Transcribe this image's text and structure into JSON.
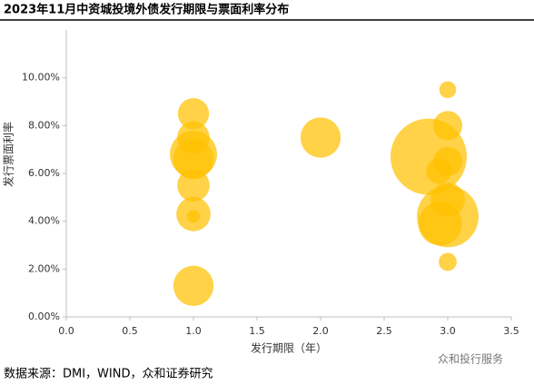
{
  "chart_data": {
    "type": "bubble",
    "title": "2023年11月中资城投境外债发行期限与票面利率分布",
    "x_label": "发行期限（年）",
    "y_label": "发行票面利率",
    "source": "数据来源：DMI，WIND，众和证券研究",
    "watermark": "众和投行服务",
    "color": "#FFC000",
    "series": [
      {
        "name": "城投境外债",
        "x": [
          1.0,
          1.0,
          1.0,
          1.0,
          1.0,
          1.0,
          1.0,
          1.0,
          2.0,
          3.0,
          3.0,
          2.85,
          3.0,
          2.93,
          3.0,
          3.0,
          2.94,
          3.0
        ],
        "values": [
          8.5,
          7.5,
          6.8,
          6.6,
          5.5,
          4.3,
          4.2,
          1.3,
          7.5,
          9.5,
          8.0,
          6.7,
          6.5,
          6.1,
          4.9,
          4.2,
          3.9,
          2.3
        ],
        "sizes": [
          24,
          26,
          55,
          40,
          26,
          29,
          4,
          40,
          40,
          7,
          21,
          144,
          21,
          16,
          29,
          94,
          47,
          8
        ]
      }
    ],
    "xlim": [
      0,
      3.5
    ],
    "xticks": [
      {
        "value": 0,
        "label": "0.0"
      },
      {
        "value": 0.5,
        "label": "0.5"
      },
      {
        "value": 1,
        "label": "1.0"
      },
      {
        "value": 1.5,
        "label": "1.5"
      },
      {
        "value": 2,
        "label": "2.0"
      },
      {
        "value": 2.5,
        "label": "2.5"
      },
      {
        "value": 3,
        "label": "3.0"
      },
      {
        "value": 3.5,
        "label": "3.5"
      }
    ],
    "ylim": [
      0,
      12
    ],
    "yticks": [
      {
        "value": 0,
        "label": "0.00%"
      },
      {
        "value": 2,
        "label": "2.00%"
      },
      {
        "value": 4,
        "label": "4.00%"
      },
      {
        "value": 6,
        "label": "6.00%"
      },
      {
        "value": 8,
        "label": "8.00%"
      },
      {
        "value": 10,
        "label": "10.00%"
      }
    ]
  }
}
